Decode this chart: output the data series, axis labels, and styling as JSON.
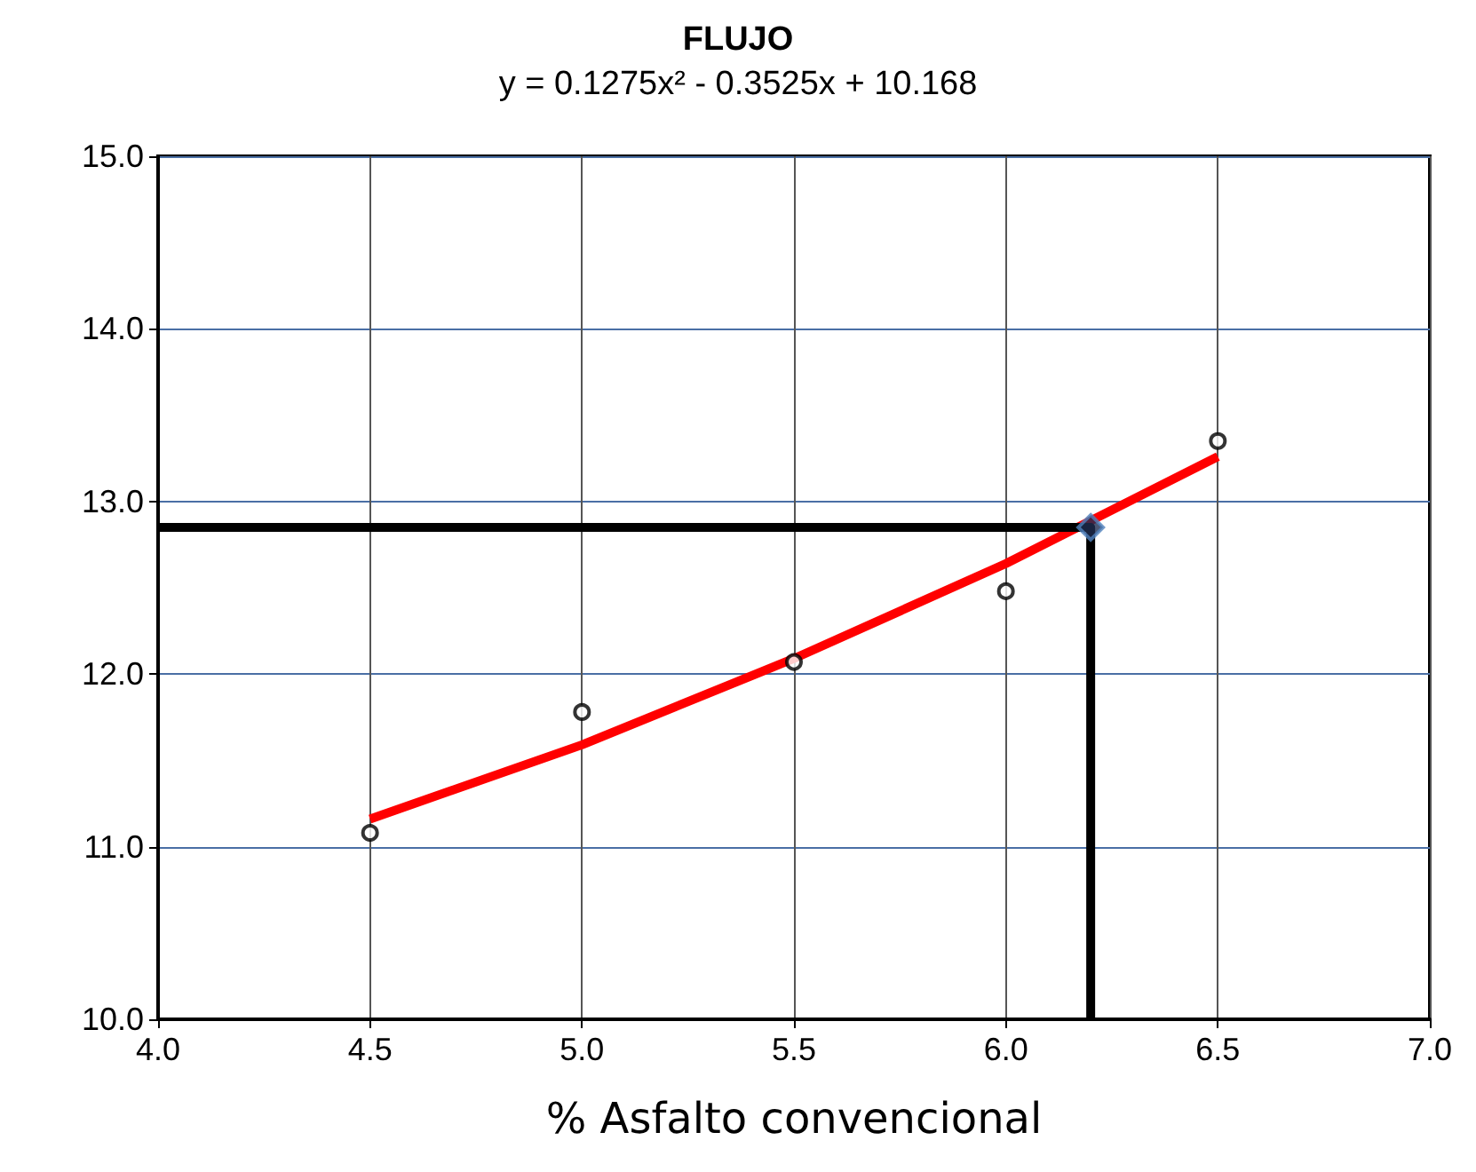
{
  "chart_data": {
    "type": "scatter",
    "title": "FLUJO",
    "subtitle": "y = 0.1275x² - 0.3525x + 10.168",
    "xlabel": "% Asfalto convencional",
    "xlim": [
      4.0,
      7.0
    ],
    "xticks": [
      {
        "value": 4,
        "label": "4.0"
      },
      {
        "value": 4.5,
        "label": "4.5"
      },
      {
        "value": 5,
        "label": "5.0"
      },
      {
        "value": 5.5,
        "label": "5.5"
      },
      {
        "value": 6,
        "label": "6.0"
      },
      {
        "value": 6.5,
        "label": "6.5"
      },
      {
        "value": 7,
        "label": "7.0"
      }
    ],
    "ylim": [
      10.0,
      15.0
    ],
    "yticks": [
      {
        "value": 10,
        "label": "10.0"
      },
      {
        "value": 11,
        "label": "11.0"
      },
      {
        "value": 12,
        "label": "12.0"
      },
      {
        "value": 13,
        "label": "13.0"
      },
      {
        "value": 14,
        "label": "14.0"
      },
      {
        "value": 15,
        "label": "15.0"
      }
    ],
    "grid": true,
    "series": [
      {
        "type": "line",
        "color": "#ff0000",
        "marker": "none",
        "line_style": "solid",
        "x": [
          4.5,
          5.0,
          5.5,
          6.0,
          6.5
        ],
        "values": [
          11.16,
          11.59,
          12.09,
          12.64,
          13.26
        ]
      },
      {
        "color": "#000000",
        "marker": "circle",
        "x": [
          4.5,
          5.0,
          5.5,
          6.0,
          6.5
        ],
        "values": [
          11.08,
          11.78,
          12.07,
          12.48,
          13.35
        ]
      },
      {
        "type": "line",
        "color": "#000000",
        "marker": "none",
        "line_style": "solid",
        "x": [
          4.0,
          6.2,
          6.2
        ],
        "values": [
          12.85,
          12.85,
          10.0
        ]
      },
      {
        "color": "#4f81bd",
        "marker": "diamond",
        "x": [
          6.2
        ],
        "values": [
          12.85
        ]
      }
    ]
  }
}
